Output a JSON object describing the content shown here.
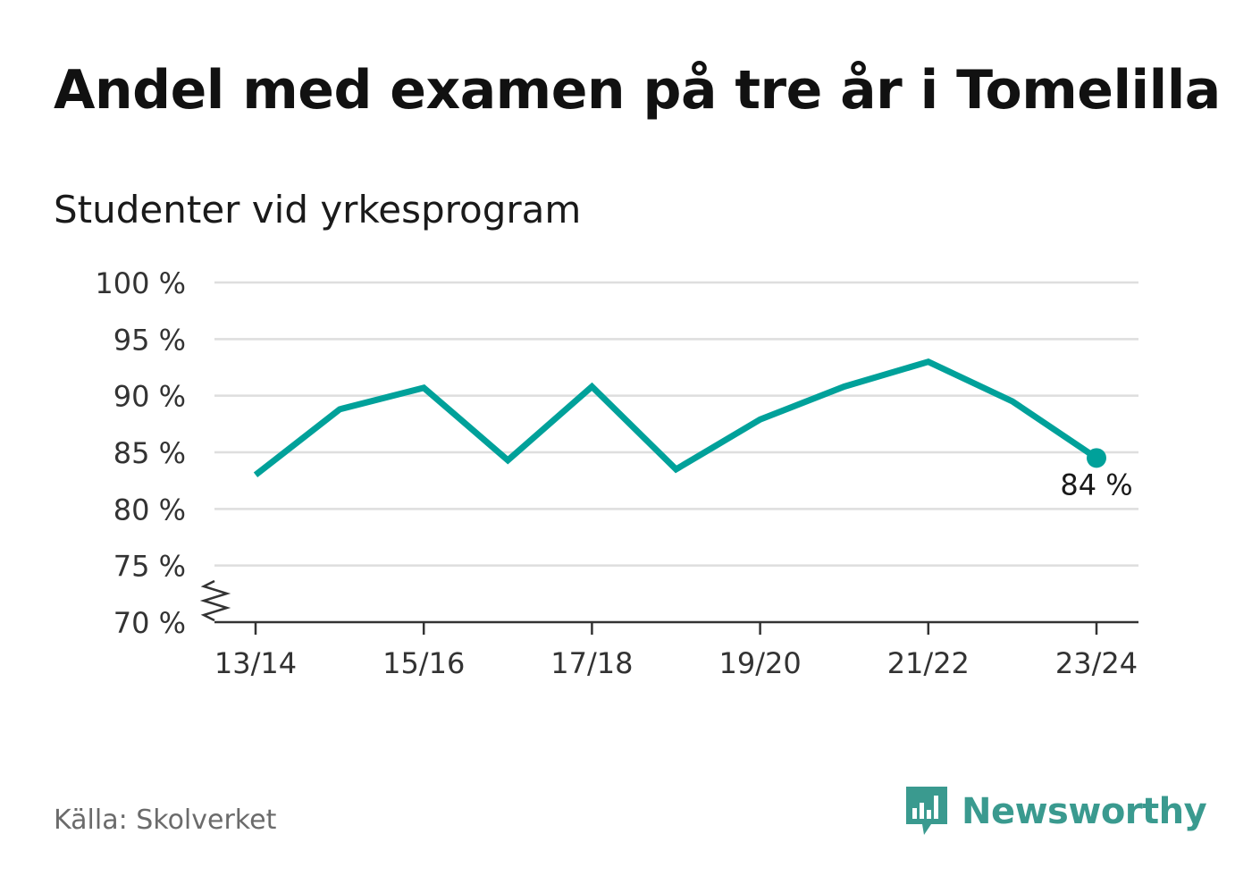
{
  "title": "Andel med examen på tre år i Tomelilla",
  "subtitle": "Studenter vid yrkesprogram",
  "source": "Källa: Skolverket",
  "brand": {
    "name": "Newsworthy",
    "icon": "newsworthy-logo-icon",
    "color": "#3a9a8f"
  },
  "chart_data": {
    "type": "line",
    "ylim": [
      70,
      100
    ],
    "yticks": [
      70,
      75,
      80,
      85,
      90,
      95,
      100
    ],
    "ytick_suffix": " %",
    "y_axis_break": true,
    "grid": "horizontal",
    "x": [
      "13/14",
      "14/15",
      "15/16",
      "16/17",
      "17/18",
      "18/19",
      "19/20",
      "20/21",
      "21/22",
      "22/23",
      "23/24"
    ],
    "xtick_labels": [
      "13/14",
      "15/16",
      "17/18",
      "19/20",
      "21/22",
      "23/24"
    ],
    "series": [
      {
        "color": "#00a19a",
        "values": [
          83.0,
          88.8,
          90.7,
          84.3,
          90.8,
          83.5,
          87.9,
          90.8,
          93.0,
          89.5,
          84.5
        ]
      }
    ],
    "end_label": "84 %"
  }
}
